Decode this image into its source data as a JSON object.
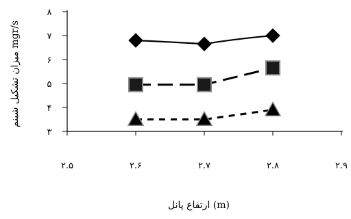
{
  "chart_data": {
    "type": "line",
    "x": [
      2.6,
      2.7,
      2.8
    ],
    "series": [
      {
        "marker": "diamond",
        "line": "solid",
        "values": [
          6.8,
          6.65,
          7.0
        ]
      },
      {
        "marker": "square",
        "line": "long-dash",
        "values": [
          4.95,
          4.95,
          5.65
        ]
      },
      {
        "marker": "triangle",
        "line": "dotted",
        "values": [
          3.5,
          3.5,
          3.9
        ]
      }
    ],
    "xlim": [
      2.5,
      2.9
    ],
    "ylim": [
      3,
      8
    ],
    "x_tick_labels": [
      "۲.۵",
      "۲.۶",
      "۲.۷",
      "۲.۸",
      "۲.۹"
    ],
    "y_tick_labels": [
      "۳",
      "۴",
      "۵",
      "۶",
      "۷",
      "۸"
    ],
    "xlabel": "ارتفاع پانل (m)",
    "ylabel": "میزان تشکیل شبنم mgr/s",
    "grid": false,
    "legend": "none",
    "colors": {
      "line": "#000000",
      "marker_square": "#1a1a1a",
      "marker_border": "#888888"
    }
  }
}
